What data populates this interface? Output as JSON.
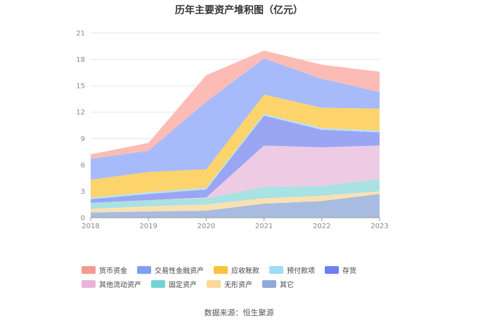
{
  "chart_data": {
    "type": "area",
    "stacked": true,
    "title": "历年主要资产堆积图（亿元）",
    "x": [
      "2018",
      "2019",
      "2020",
      "2021",
      "2022",
      "2023"
    ],
    "ylim": [
      0,
      21
    ],
    "yticks": [
      "0",
      "3",
      "6",
      "9",
      "12",
      "15",
      "18",
      "21"
    ],
    "grid": true,
    "legend_position": "bottom",
    "series": [
      {
        "name": "其它",
        "color": "#a7bce0",
        "values": [
          0.6,
          0.7,
          0.8,
          1.6,
          1.9,
          2.7
        ]
      },
      {
        "name": "无形资产",
        "color": "#fbe0b2",
        "values": [
          0.4,
          0.6,
          0.7,
          0.6,
          0.6,
          0.3
        ]
      },
      {
        "name": "固定资产",
        "color": "#a9e2e2",
        "values": [
          0.7,
          0.7,
          0.7,
          1.3,
          1.1,
          1.4
        ]
      },
      {
        "name": "其他流动资产",
        "color": "#eecbe4",
        "values": [
          0.0,
          0.0,
          0.1,
          4.7,
          4.4,
          3.8
        ]
      },
      {
        "name": "存货",
        "color": "#9aa5f4",
        "values": [
          0.4,
          0.7,
          0.9,
          3.4,
          2.0,
          1.5
        ]
      },
      {
        "name": "预付款项",
        "color": "#b3e2f6",
        "values": [
          0.2,
          0.2,
          0.2,
          0.2,
          0.2,
          0.2
        ]
      },
      {
        "name": "应收账款",
        "color": "#fdd36b",
        "values": [
          2.0,
          2.3,
          2.1,
          2.2,
          2.3,
          2.5
        ]
      },
      {
        "name": "交易性金融资产",
        "color": "#a7bbfb",
        "values": [
          2.4,
          2.4,
          7.7,
          4.1,
          3.3,
          1.9
        ]
      },
      {
        "name": "货币资金",
        "color": "#fcbcb5",
        "values": [
          0.5,
          0.9,
          3.0,
          0.9,
          1.6,
          2.3
        ]
      }
    ]
  },
  "legend": [
    {
      "name": "货币资金",
      "color": "#f59a8e"
    },
    {
      "name": "交易性金融资产",
      "color": "#7f9ef8"
    },
    {
      "name": "应收账款",
      "color": "#fbc23b"
    },
    {
      "name": "预付款项",
      "color": "#9fdcf5"
    },
    {
      "name": "存货",
      "color": "#6f7ff0"
    },
    {
      "name": "其他流动资产",
      "color": "#e9b4db"
    },
    {
      "name": "固定资产",
      "color": "#72d3d3"
    },
    {
      "name": "无形资产",
      "color": "#fcd89b"
    },
    {
      "name": "其它",
      "color": "#8eaadb"
    }
  ],
  "source": "数据来源：恒生聚源"
}
